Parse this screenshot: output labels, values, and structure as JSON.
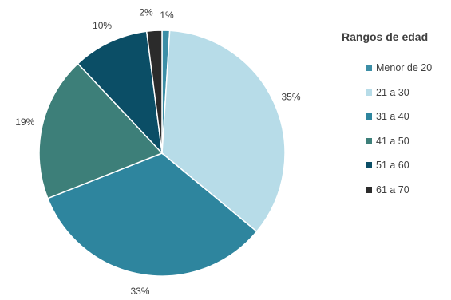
{
  "chart_data": {
    "type": "pie",
    "legend_title": "Rangos de edad",
    "legend_position": "right",
    "slices": [
      {
        "label": "Menor de 20",
        "value": 1,
        "pct_label": "1%",
        "color": "#3c8ea6"
      },
      {
        "label": "21 a 30",
        "value": 35,
        "pct_label": "35%",
        "color": "#b7dce8"
      },
      {
        "label": "31 a 40",
        "value": 33,
        "pct_label": "33%",
        "color": "#2e859e"
      },
      {
        "label": "41 a 50",
        "value": 19,
        "pct_label": "19%",
        "color": "#3d7f79"
      },
      {
        "label": "51 a 60",
        "value": 10,
        "pct_label": "10%",
        "color": "#0b4e66"
      },
      {
        "label": "61 a 70",
        "value": 2,
        "pct_label": "2%",
        "color": "#2b2b2b"
      }
    ]
  }
}
